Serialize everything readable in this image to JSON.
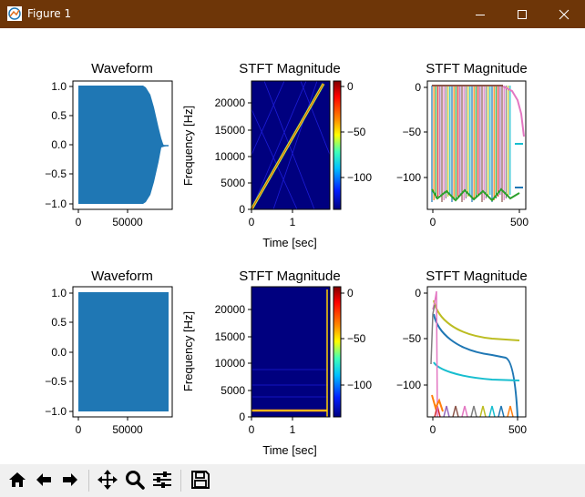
{
  "window": {
    "title": "Figure 1"
  },
  "subplots": {
    "top": {
      "waveform": {
        "title": "Waveform",
        "yticks": [
          "1.0",
          "0.5",
          "0.0",
          "−0.5",
          "−1.0"
        ],
        "xticks": [
          "0",
          "50000"
        ]
      },
      "spectrogram": {
        "title": "STFT Magnitude",
        "ylabel": "Frequency [Hz]",
        "xlabel": "Time [sec]",
        "yticks": [
          "20000",
          "15000",
          "10000",
          "5000",
          "0"
        ],
        "xticks": [
          "0",
          "1"
        ],
        "colorbar_ticks": [
          "0",
          "−50",
          "−100"
        ]
      },
      "slices": {
        "title": "STFT Magnitude",
        "yticks": [
          "0",
          "−50",
          "−100"
        ],
        "xticks": [
          "0",
          "500"
        ]
      }
    },
    "bottom": {
      "waveform": {
        "title": "Waveform",
        "yticks": [
          "1.0",
          "0.5",
          "0.0",
          "−0.5",
          "−1.0"
        ],
        "xticks": [
          "0",
          "50000"
        ]
      },
      "spectrogram": {
        "title": "STFT Magnitude",
        "ylabel": "Frequency [Hz]",
        "xlabel": "Time [sec]",
        "yticks": [
          "20000",
          "15000",
          "10000",
          "5000",
          "0"
        ],
        "xticks": [
          "0",
          "1"
        ],
        "colorbar_ticks": [
          "0",
          "−50",
          "−100"
        ]
      },
      "slices": {
        "title": "STFT Magnitude",
        "yticks": [
          "0",
          "−50",
          "−100"
        ],
        "xticks": [
          "0",
          "500"
        ]
      }
    }
  },
  "toolbar": {
    "buttons": [
      "home-icon",
      "back-arrow-icon",
      "forward-arrow-icon",
      "pan-icon",
      "zoom-icon",
      "configure-subplots-icon",
      "save-icon"
    ]
  },
  "colors": {
    "titlebar": "#6e3608",
    "waveform": "#1f77b4",
    "toolbar": "#f0f0f0"
  }
}
